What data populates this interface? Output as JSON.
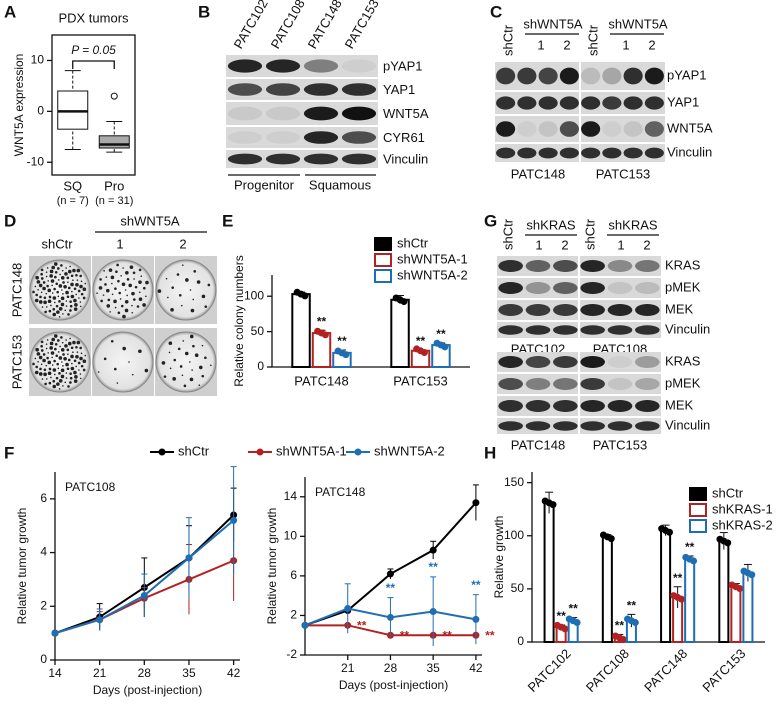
{
  "chart_data": [
    {
      "letter": "A",
      "type": "box",
      "title": "PDX tumors",
      "ylabel": "WNT5A expression",
      "categories": [
        "SQ",
        "Pro"
      ],
      "sublabels": [
        "(n = 7)",
        "(n = 31)"
      ],
      "annotation": "P = 0.05",
      "boxes": [
        {
          "min": -7.5,
          "q1": -3.5,
          "median": 0,
          "q3": 4,
          "max": 8,
          "color": "#ffffff"
        },
        {
          "min": -8,
          "q1": -7.2,
          "median": -6.5,
          "q3": -4.8,
          "max": -2,
          "outliers": [
            3
          ],
          "color": "#aaaaaa"
        }
      ],
      "ylim": [
        -12.5,
        15
      ],
      "yticks": [
        -10,
        0,
        10
      ]
    },
    {
      "letter": "E",
      "type": "bar",
      "ylabel": "Relative colony numbers",
      "categories": [
        "PATC148",
        "PATC153"
      ],
      "series": [
        {
          "name": "shCtr",
          "color": "#000000",
          "values": [
            103,
            95
          ],
          "errors": [
            3,
            6
          ]
        },
        {
          "name": "shWNT5A-1",
          "color": "#b22222",
          "values": [
            48,
            23
          ],
          "errors": [
            4,
            1
          ],
          "significance": [
            "**",
            "**"
          ]
        },
        {
          "name": "shWNT5A-2",
          "color": "#1f6eb4",
          "values": [
            20,
            31
          ],
          "errors": [
            4,
            3
          ],
          "significance": [
            "**",
            "**"
          ]
        }
      ],
      "ylim": [
        0,
        130
      ],
      "yticks": [
        0,
        50,
        100
      ]
    },
    {
      "letter": "F",
      "type": "line",
      "title": "PATC108",
      "ylabel": "Relative tumor growth",
      "xlabel": "Days (post-injection)",
      "x": [
        14,
        21,
        28,
        35,
        42
      ],
      "series": [
        {
          "name": "shCtr",
          "color": "#000000",
          "values": [
            1,
            1.6,
            2.7,
            3.8,
            5.4
          ],
          "errors": [
            0,
            0.5,
            1.1,
            1.2,
            1.0
          ]
        },
        {
          "name": "shWNT5A-1",
          "color": "#b22222",
          "values": [
            1,
            1.5,
            2.3,
            3.0,
            3.7
          ],
          "errors": [
            0,
            0.3,
            0.4,
            1.3,
            1.5
          ]
        },
        {
          "name": "shWNT5A-2",
          "color": "#1f6eb4",
          "values": [
            1,
            1.5,
            2.4,
            3.8,
            5.2
          ],
          "errors": [
            0,
            0.4,
            0.8,
            1.5,
            2.0
          ]
        }
      ],
      "xlim": [
        14,
        43
      ],
      "ylim": [
        0,
        7
      ],
      "xticks": [
        14,
        21,
        28,
        35,
        42
      ],
      "yticks": [
        0,
        2,
        4,
        6
      ]
    },
    {
      "type": "line",
      "title": "PATC148",
      "ylabel": "Relative tumor growth",
      "xlabel": "Days (post-injection)",
      "x": [
        14,
        21,
        28,
        35,
        42
      ],
      "series": [
        {
          "color": "#000000",
          "values": [
            1,
            2.5,
            6.2,
            8.6,
            13.4
          ],
          "errors": [
            0,
            0.3,
            0.5,
            0.9,
            1.8
          ]
        },
        {
          "color": "#b22222",
          "values": [
            1,
            1,
            0,
            0,
            0
          ],
          "errors": [
            0,
            0,
            0,
            0,
            0
          ],
          "significance": [
            null,
            "**",
            "**",
            "**",
            "**"
          ]
        },
        {
          "color": "#1f6eb4",
          "values": [
            1,
            2.7,
            1.8,
            2.4,
            1.6
          ],
          "errors": [
            0,
            2.5,
            2.0,
            3.5,
            2.5
          ],
          "significance": [
            null,
            null,
            "**",
            "**",
            "**"
          ]
        }
      ],
      "xlim": [
        14,
        43
      ],
      "ylim": [
        -2,
        16
      ],
      "xticks": [
        21,
        28,
        35,
        42
      ],
      "yticks": [
        -2,
        2,
        6,
        10,
        14
      ]
    },
    {
      "letter": "H",
      "type": "bar",
      "ylabel": "Relative growth",
      "categories": [
        "PATC102",
        "PATC108",
        "PATC148",
        "PATC153"
      ],
      "series": [
        {
          "name": "shCtr",
          "color": "#000000",
          "values": [
            131,
            99,
            105,
            95
          ],
          "errors": [
            10,
            2,
            5,
            8
          ]
        },
        {
          "name": "shKRAS-1",
          "color": "#b22222",
          "values": [
            14,
            4,
            42,
            52
          ],
          "errors": [
            2,
            3,
            10,
            3
          ],
          "significance": [
            "**",
            "**",
            "**",
            null
          ]
        },
        {
          "name": "shKRAS-2",
          "color": "#1f6eb4",
          "values": [
            20,
            20,
            78,
            65
          ],
          "errors": [
            3,
            6,
            3,
            8
          ],
          "significance": [
            "**",
            "**",
            "**",
            null
          ]
        }
      ],
      "ylim": [
        0,
        160
      ],
      "yticks": [
        0,
        50,
        100,
        150
      ],
      "rotate_labels": true
    }
  ],
  "blots": {
    "B": {
      "letter": "B",
      "lanes": [
        "PATC102",
        "PATC108",
        "PATC148",
        "PATC153"
      ],
      "rows": [
        "pYAP1",
        "YAP1",
        "WNT5A",
        "CYR61",
        "Vinculin"
      ],
      "groups": [
        "Progenitor",
        "Squamous"
      ]
    },
    "C": {
      "letter": "C",
      "rows": [
        "pYAP1",
        "YAP1",
        "WNT5A",
        "Vinculin"
      ],
      "cells": [
        {
          "name": "PATC148",
          "control": "shCtr",
          "knockdown": "shWNT5A",
          "clones": [
            "1",
            "2"
          ]
        },
        {
          "name": "PATC153",
          "control": "shCtr",
          "knockdown": "shWNT5A",
          "clones": [
            "1",
            "2"
          ]
        }
      ]
    },
    "D": {
      "letter": "D",
      "knockdown": "shWNT5A",
      "columns": [
        "shCtr",
        "1",
        "2"
      ],
      "rows": [
        "PATC148",
        "PATC153"
      ]
    },
    "G": {
      "letter": "G",
      "control": "shCtr",
      "knockdown": "shKRAS",
      "clones": [
        "1",
        "2"
      ],
      "rows": [
        "KRAS",
        "pMEK",
        "MEK",
        "Vinculin"
      ],
      "cells": [
        "PATC102",
        "PATC108",
        "PATC148",
        "PATC153"
      ]
    }
  }
}
